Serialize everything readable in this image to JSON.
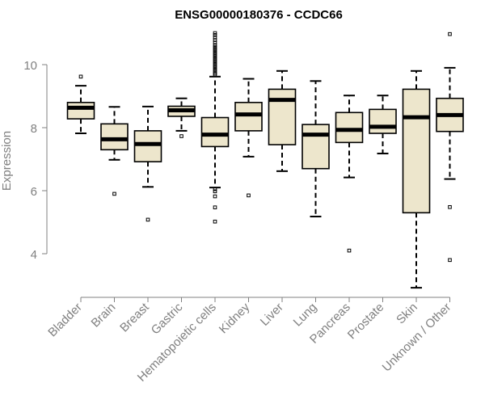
{
  "chart_data": {
    "type": "box",
    "title": "ENSG00000180376 - CCDC66",
    "xlabel": "",
    "ylabel": "Expression",
    "ylim": [
      2.8,
      11.1
    ],
    "yticks": [
      4,
      6,
      8,
      10
    ],
    "grid": false,
    "box_color": "#ede6cc",
    "categories": [
      "Bladder",
      "Brain",
      "Breast",
      "Gastric",
      "Hematopoietic cells",
      "Kidney",
      "Liver",
      "Lung",
      "Pancreas",
      "Prostate",
      "Skin",
      "Unknown / Other"
    ],
    "boxes": [
      {
        "whisker_low": 7.82,
        "q1": 8.28,
        "median": 8.63,
        "q3": 8.8,
        "whisker_high": 9.33,
        "outliers": [
          9.62
        ]
      },
      {
        "whisker_low": 6.98,
        "q1": 7.3,
        "median": 7.63,
        "q3": 8.12,
        "whisker_high": 8.66,
        "outliers": [
          5.9
        ]
      },
      {
        "whisker_low": 6.12,
        "q1": 6.92,
        "median": 7.48,
        "q3": 7.9,
        "whisker_high": 8.67,
        "outliers": [
          5.08
        ]
      },
      {
        "whisker_low": 7.9,
        "q1": 8.36,
        "median": 8.55,
        "q3": 8.68,
        "whisker_high": 8.93,
        "outliers": [
          7.73
        ]
      },
      {
        "whisker_low": 6.1,
        "q1": 7.4,
        "median": 7.78,
        "q3": 8.32,
        "whisker_high": 9.62,
        "outliers": [
          5.02,
          5.47,
          5.82,
          5.98,
          6.05,
          9.68,
          9.72,
          9.78,
          9.84,
          9.9,
          9.96,
          10.02,
          10.08,
          10.14,
          10.2,
          10.26,
          10.32,
          10.38,
          10.44,
          10.5,
          10.56,
          10.62,
          10.7,
          10.78,
          10.86,
          10.94,
          11.0
        ]
      },
      {
        "whisker_low": 7.08,
        "q1": 7.9,
        "median": 8.42,
        "q3": 8.8,
        "whisker_high": 9.55,
        "outliers": [
          5.85
        ]
      },
      {
        "whisker_low": 6.62,
        "q1": 7.46,
        "median": 8.88,
        "q3": 9.22,
        "whisker_high": 9.8,
        "outliers": []
      },
      {
        "whisker_low": 5.18,
        "q1": 6.7,
        "median": 7.78,
        "q3": 8.1,
        "whisker_high": 9.48,
        "outliers": []
      },
      {
        "whisker_low": 6.42,
        "q1": 7.53,
        "median": 7.93,
        "q3": 8.48,
        "whisker_high": 9.02,
        "outliers": [
          4.1
        ]
      },
      {
        "whisker_low": 7.18,
        "q1": 7.82,
        "median": 8.03,
        "q3": 8.58,
        "whisker_high": 9.02,
        "outliers": []
      },
      {
        "whisker_low": 2.92,
        "q1": 5.3,
        "median": 8.33,
        "q3": 9.22,
        "whisker_high": 9.8,
        "outliers": []
      },
      {
        "whisker_low": 6.37,
        "q1": 7.88,
        "median": 8.4,
        "q3": 8.93,
        "whisker_high": 9.9,
        "outliers": [
          3.8,
          5.48,
          10.97
        ]
      }
    ]
  }
}
